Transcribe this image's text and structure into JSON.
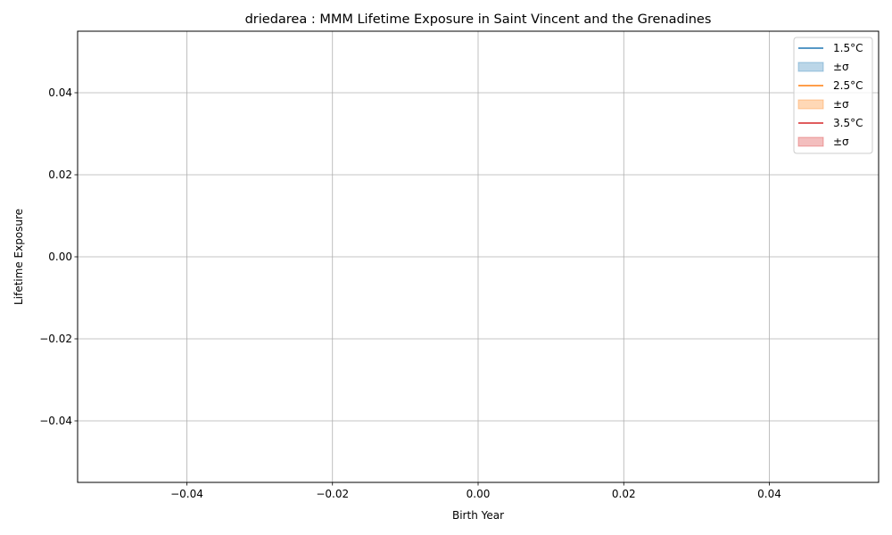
{
  "chart_data": {
    "type": "line",
    "title": "driedarea : MMM Lifetime Exposure in Saint Vincent and the Grenadines",
    "xlabel": "Birth Year",
    "ylabel": "Lifetime Exposure",
    "xlim": [
      -0.055,
      0.055
    ],
    "ylim": [
      -0.055,
      0.055
    ],
    "xticks": [
      -0.04,
      -0.02,
      0.0,
      0.02,
      0.04
    ],
    "yticks": [
      -0.04,
      -0.02,
      0.0,
      0.02,
      0.04
    ],
    "xtick_labels": [
      "−0.04",
      "−0.02",
      "0.00",
      "0.02",
      "0.04"
    ],
    "ytick_labels": [
      "−0.04",
      "−0.02",
      "0.00",
      "0.02",
      "0.04"
    ],
    "grid": true,
    "legend_position": "top-right",
    "legend": [
      {
        "label": "1.5°C",
        "kind": "line",
        "color": "#1f77b4"
      },
      {
        "label": "±σ",
        "kind": "band",
        "color": "#1f77b4"
      },
      {
        "label": "2.5°C",
        "kind": "line",
        "color": "#ff7f0e"
      },
      {
        "label": "±σ",
        "kind": "band",
        "color": "#ff7f0e"
      },
      {
        "label": "3.5°C",
        "kind": "line",
        "color": "#d62728"
      },
      {
        "label": "±σ",
        "kind": "band",
        "color": "#d62728"
      }
    ],
    "series": [
      {
        "name": "1.5°C",
        "color": "#1f77b4",
        "x": [],
        "y": [],
        "band_lower": [],
        "band_upper": []
      },
      {
        "name": "2.5°C",
        "color": "#ff7f0e",
        "x": [],
        "y": [],
        "band_lower": [],
        "band_upper": []
      },
      {
        "name": "3.5°C",
        "color": "#d62728",
        "x": [],
        "y": [],
        "band_lower": [],
        "band_upper": []
      }
    ]
  }
}
